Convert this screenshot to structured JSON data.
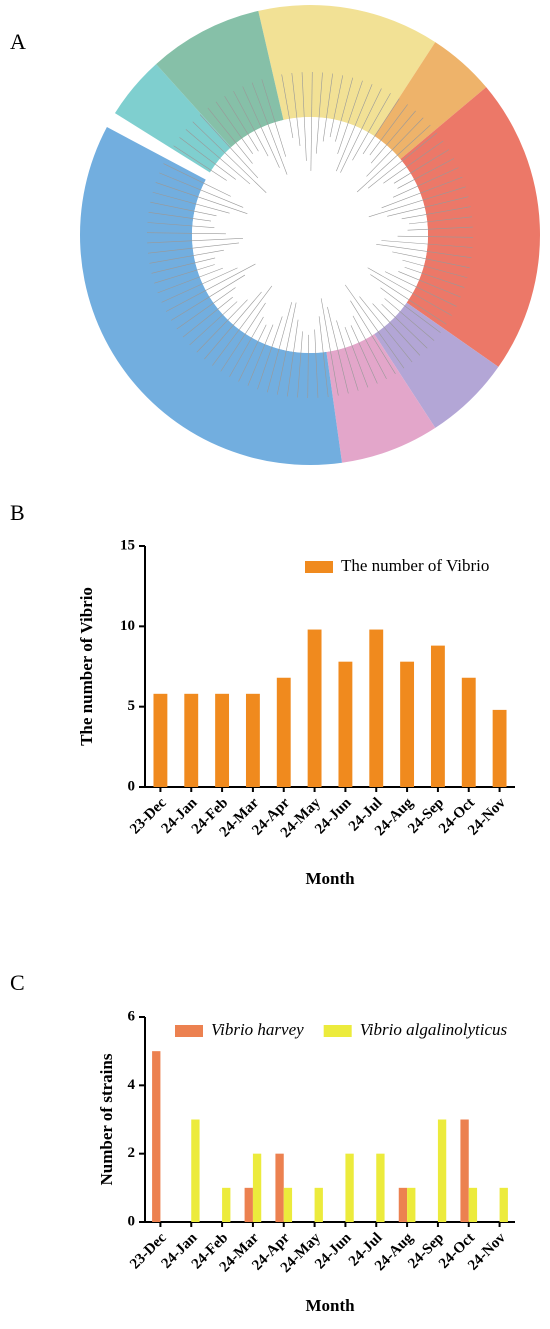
{
  "panel_a": {
    "label": "A"
  },
  "chart_data": [
    {
      "type": "bar",
      "panel_label": "B",
      "xlabel": "Month",
      "ylabel": "The number of Vibrio",
      "categories": [
        "23-Dec",
        "24-Jan",
        "24-Feb",
        "24-Mar",
        "24-Apr",
        "24-May",
        "24-Jun",
        "24-Jul",
        "24-Aug",
        "24-Sep",
        "24-Oct",
        "24-Nov"
      ],
      "series": [
        {
          "name": "The number of Vibrio",
          "color": "#f08a1e",
          "values": [
            5.8,
            5.8,
            5.8,
            5.8,
            6.8,
            9.8,
            7.8,
            9.8,
            7.8,
            8.8,
            6.8,
            4.8
          ]
        }
      ],
      "ylim": [
        0,
        15
      ],
      "yticks": [
        0,
        5,
        10,
        15
      ]
    },
    {
      "type": "bar",
      "panel_label": "C",
      "xlabel": "Month",
      "ylabel": "Number of strains",
      "categories": [
        "23-Dec",
        "24-Jan",
        "24-Feb",
        "24-Mar",
        "24-Apr",
        "24-May",
        "24-Jun",
        "24-Jul",
        "24-Aug",
        "24-Sep",
        "24-Oct",
        "24-Nov"
      ],
      "series": [
        {
          "name": "Vibrio harvey",
          "color": "#ec8150",
          "values": [
            5,
            0,
            0,
            1,
            2,
            0,
            0,
            0,
            1,
            0,
            3,
            0
          ]
        },
        {
          "name": "Vibrio algalinolyticus",
          "color": "#eceb3c",
          "values": [
            0,
            3,
            1,
            2,
            1,
            1,
            2,
            2,
            1,
            3,
            1,
            1
          ]
        }
      ],
      "ylim": [
        0,
        6
      ],
      "yticks": [
        0,
        2,
        4,
        6
      ]
    }
  ]
}
